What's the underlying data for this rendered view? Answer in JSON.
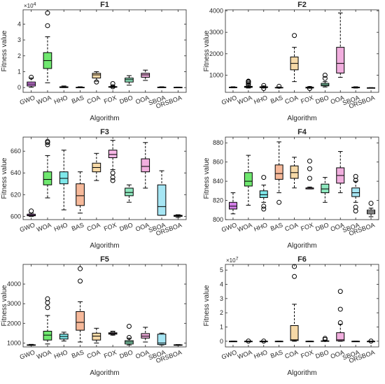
{
  "chart_data": [
    {
      "type": "box",
      "title": "F1",
      "xlabel": "Algorithm",
      "ylabel": "Fitness value",
      "ylim": [
        -0.3,
        4.9
      ],
      "yticks": [
        0,
        1,
        2,
        3,
        4
      ],
      "yticks_labels": [
        "0",
        "1",
        "2",
        "3",
        "4"
      ],
      "y_exponent": "×10",
      "y_exponent_power": "4",
      "categories": [
        "GWO",
        "WOA",
        "HHO",
        "BAS",
        "COA",
        "FOX",
        "DBO",
        "OOA",
        "SBOA",
        "ORSBOA"
      ],
      "boxes": [
        {
          "wlo": 0.02,
          "q1": 0.1,
          "med": 0.22,
          "q3": 0.35,
          "whi": 0.6,
          "out": [
            0.65
          ]
        },
        {
          "wlo": 0.3,
          "q1": 1.2,
          "med": 1.7,
          "q3": 2.2,
          "whi": 3.2,
          "out": [
            3.9,
            4.7
          ]
        },
        {
          "wlo": 0,
          "q1": 0,
          "med": 0.02,
          "q3": 0.05,
          "whi": 0.1,
          "out": []
        },
        {
          "wlo": 0,
          "q1": 0,
          "med": 0.01,
          "q3": 0.02,
          "whi": 0.05,
          "out": []
        },
        {
          "wlo": 0.4,
          "q1": 0.6,
          "med": 0.8,
          "q3": 0.9,
          "whi": 1.0,
          "out": [
            0.35
          ]
        },
        {
          "wlo": 0,
          "q1": 0.02,
          "med": 0.04,
          "q3": 0.06,
          "whi": 0.1,
          "out": [
            0.25,
            0.05
          ]
        },
        {
          "wlo": 0.15,
          "q1": 0.35,
          "med": 0.5,
          "q3": 0.6,
          "whi": 0.75,
          "out": []
        },
        {
          "wlo": 0.45,
          "q1": 0.65,
          "med": 0.8,
          "q3": 0.9,
          "whi": 1.1,
          "out": []
        },
        {
          "wlo": 0,
          "q1": 0.01,
          "med": 0.02,
          "q3": 0.03,
          "whi": 0.05,
          "out": []
        },
        {
          "wlo": 0,
          "q1": 0,
          "med": 0.01,
          "q3": 0.02,
          "whi": 0.03,
          "out": []
        }
      ]
    },
    {
      "type": "box",
      "title": "F2",
      "xlabel": "Algorithm",
      "ylabel": "Fitness value",
      "ylim": [
        200,
        4050
      ],
      "yticks": [
        1000,
        2000,
        3000,
        4000
      ],
      "yticks_labels": [
        "1000",
        "2000",
        "3000",
        "4000"
      ],
      "categories": [
        "GWO",
        "WOA",
        "HHO",
        "BAS",
        "COA",
        "FOX",
        "DBO",
        "OOA",
        "SBOA",
        "ORSBOA"
      ],
      "boxes": [
        {
          "wlo": 410,
          "q1": 420,
          "med": 430,
          "q3": 440,
          "whi": 460,
          "out": []
        },
        {
          "wlo": 400,
          "q1": 430,
          "med": 450,
          "q3": 480,
          "whi": 540,
          "out": [
            560,
            620,
            680,
            700,
            720
          ]
        },
        {
          "wlo": 400,
          "q1": 420,
          "med": 440,
          "q3": 460,
          "whi": 500,
          "out": [
            380,
            520
          ]
        },
        {
          "wlo": 400,
          "q1": 410,
          "med": 420,
          "q3": 430,
          "whi": 450,
          "out": [
            480
          ]
        },
        {
          "wlo": 700,
          "q1": 1250,
          "med": 1550,
          "q3": 1850,
          "whi": 2300,
          "out": [
            2850
          ]
        },
        {
          "wlo": 390,
          "q1": 400,
          "med": 420,
          "q3": 440,
          "whi": 470,
          "out": [
            380
          ]
        },
        {
          "wlo": 450,
          "q1": 500,
          "med": 550,
          "q3": 620,
          "whi": 700,
          "out": [
            850,
            1000
          ]
        },
        {
          "wlo": 900,
          "q1": 1100,
          "med": 1550,
          "q3": 2300,
          "whi": 3900,
          "out": []
        },
        {
          "wlo": 400,
          "q1": 410,
          "med": 420,
          "q3": 440,
          "whi": 460,
          "out": []
        },
        {
          "wlo": 400,
          "q1": 405,
          "med": 410,
          "q3": 415,
          "whi": 420,
          "out": []
        }
      ]
    },
    {
      "type": "box",
      "title": "F3",
      "xlabel": "Algorithm",
      "ylabel": "Fitness value",
      "ylim": [
        597,
        673
      ],
      "yticks": [
        600,
        620,
        640,
        660
      ],
      "yticks_labels": [
        "600",
        "620",
        "640",
        "660"
      ],
      "categories": [
        "GWO",
        "WOA",
        "HHO",
        "BAS",
        "COA",
        "FOX",
        "DBO",
        "OOA",
        "SBOA",
        "ORSBOA"
      ],
      "boxes": [
        {
          "wlo": 600,
          "q1": 600.5,
          "med": 601,
          "q3": 602,
          "whi": 603,
          "out": [
            605
          ]
        },
        {
          "wlo": 617,
          "q1": 629,
          "med": 634,
          "q3": 641,
          "whi": 656,
          "out": [
            666,
            668,
            669
          ]
        },
        {
          "wlo": 606,
          "q1": 630,
          "med": 635,
          "q3": 641,
          "whi": 661,
          "out": []
        },
        {
          "wlo": 603,
          "q1": 610,
          "med": 619,
          "q3": 630,
          "whi": 641,
          "out": []
        },
        {
          "wlo": 633,
          "q1": 641,
          "med": 645,
          "q3": 649,
          "whi": 658,
          "out": []
        },
        {
          "wlo": 643,
          "q1": 654,
          "med": 657,
          "q3": 661,
          "whi": 670,
          "out": [
            633,
            636,
            640
          ]
        },
        {
          "wlo": 613,
          "q1": 619,
          "med": 622,
          "q3": 626,
          "whi": 629,
          "out": []
        },
        {
          "wlo": 626,
          "q1": 641,
          "med": 646,
          "q3": 653,
          "whi": 668,
          "out": []
        },
        {
          "wlo": 601,
          "q1": 601,
          "med": 609,
          "q3": 629,
          "whi": 642,
          "out": []
        },
        {
          "wlo": 599,
          "q1": 600,
          "med": 600.5,
          "q3": 601,
          "whi": 601.5,
          "out": []
        }
      ]
    },
    {
      "type": "box",
      "title": "F4",
      "xlabel": "Algorithm",
      "ylabel": "Fitness value",
      "ylim": [
        800,
        886
      ],
      "yticks": [
        800,
        820,
        840,
        860,
        880
      ],
      "yticks_labels": [
        "800",
        "820",
        "840",
        "860",
        "880"
      ],
      "categories": [
        "GWO",
        "WOA",
        "HHO",
        "BAS",
        "COA",
        "FOX",
        "DBO",
        "OOA",
        "SBOA",
        "ORSBOA"
      ],
      "boxes": [
        {
          "wlo": 806,
          "q1": 811,
          "med": 814,
          "q3": 818,
          "whi": 828,
          "out": []
        },
        {
          "wlo": 815,
          "q1": 835,
          "med": 840,
          "q3": 849,
          "whi": 867,
          "out": []
        },
        {
          "wlo": 818,
          "q1": 823,
          "med": 826,
          "q3": 830,
          "whi": 836,
          "out": [
            811,
            814,
            844
          ]
        },
        {
          "wlo": 828,
          "q1": 842,
          "med": 848,
          "q3": 857,
          "whi": 881,
          "out": [
            818
          ]
        },
        {
          "wlo": 833,
          "q1": 843,
          "med": 849,
          "q3": 856,
          "whi": 865,
          "out": []
        },
        {
          "wlo": 832,
          "q1": 832,
          "med": 833,
          "q3": 833,
          "whi": 834,
          "out": [
            843,
            853,
            861
          ]
        },
        {
          "wlo": 818,
          "q1": 828,
          "med": 832,
          "q3": 837,
          "whi": 844,
          "out": []
        },
        {
          "wlo": 828,
          "q1": 838,
          "med": 846,
          "q3": 854,
          "whi": 871,
          "out": []
        },
        {
          "wlo": 818,
          "q1": 824,
          "med": 828,
          "q3": 833,
          "whi": 840,
          "out": [
            809,
            813,
            841,
            845
          ]
        },
        {
          "wlo": 803,
          "q1": 806,
          "med": 808,
          "q3": 810,
          "whi": 812,
          "out": [
            817
          ]
        }
      ]
    },
    {
      "type": "box",
      "title": "F5",
      "xlabel": "Algorithm",
      "ylabel": "Fitness value",
      "ylim": [
        800,
        5000
      ],
      "yticks": [
        1000,
        2000,
        3000,
        4000
      ],
      "yticks_labels": [
        "1000",
        "2000",
        "3000",
        "4000"
      ],
      "categories": [
        "GWO",
        "WOA",
        "HHO",
        "BAS",
        "COA",
        "FOX",
        "DBO",
        "OOA",
        "SBOA",
        "ORSBOA"
      ],
      "boxes": [
        {
          "wlo": 880,
          "q1": 890,
          "med": 900,
          "q3": 910,
          "whi": 930,
          "out": []
        },
        {
          "wlo": 950,
          "q1": 1150,
          "med": 1400,
          "q3": 1600,
          "whi": 2400,
          "out": [
            2800,
            3050,
            3250
          ]
        },
        {
          "wlo": 1100,
          "q1": 1200,
          "med": 1330,
          "q3": 1450,
          "whi": 1550,
          "out": []
        },
        {
          "wlo": 1050,
          "q1": 1650,
          "med": 2050,
          "q3": 2600,
          "whi": 3100,
          "out": [
            4150,
            4780
          ]
        },
        {
          "wlo": 1000,
          "q1": 1150,
          "med": 1350,
          "q3": 1500,
          "whi": 1750,
          "out": []
        },
        {
          "wlo": 1400,
          "q1": 1450,
          "med": 1480,
          "q3": 1520,
          "whi": 1600,
          "out": [
            1500
          ]
        },
        {
          "wlo": 900,
          "q1": 950,
          "med": 1050,
          "q3": 1120,
          "whi": 1250,
          "out": [
            1280,
            1850
          ]
        },
        {
          "wlo": 1050,
          "q1": 1250,
          "med": 1350,
          "q3": 1480,
          "whi": 1800,
          "out": []
        },
        {
          "wlo": 900,
          "q1": 920,
          "med": 1000,
          "q3": 1450,
          "whi": 1500,
          "out": []
        },
        {
          "wlo": 880,
          "q1": 890,
          "med": 900,
          "q3": 910,
          "whi": 920,
          "out": []
        }
      ]
    },
    {
      "type": "box",
      "title": "F6",
      "xlabel": "Algorithm",
      "ylabel": "Fitness value",
      "ylim": [
        -0.4,
        5.4
      ],
      "yticks": [
        0,
        1,
        2,
        3,
        4,
        5
      ],
      "yticks_labels": [
        "0",
        "1",
        "2",
        "3",
        "4",
        "5"
      ],
      "y_exponent": "×10",
      "y_exponent_power": "7",
      "categories": [
        "GWO",
        "WOA",
        "HHO",
        "BAS",
        "COA",
        "FOX",
        "DBO",
        "OOA",
        "SBOA",
        "ORSBOA"
      ],
      "boxes": [
        {
          "wlo": 0,
          "q1": 0,
          "med": 0,
          "q3": 0,
          "whi": 0,
          "out": []
        },
        {
          "wlo": 0,
          "q1": 0,
          "med": 0,
          "q3": 0,
          "whi": 0,
          "out": [
            0.01
          ]
        },
        {
          "wlo": 0,
          "q1": 0,
          "med": 0,
          "q3": 0,
          "whi": 0,
          "out": [
            0.01
          ]
        },
        {
          "wlo": 0,
          "q1": 0,
          "med": 0,
          "q3": 0,
          "whi": 0,
          "out": []
        },
        {
          "wlo": 0,
          "q1": 0.05,
          "med": 0.1,
          "q3": 1.1,
          "whi": 2.6,
          "out": [
            4.55,
            5.25
          ]
        },
        {
          "wlo": 0,
          "q1": 0,
          "med": 0,
          "q3": 0,
          "whi": 0,
          "out": []
        },
        {
          "wlo": 0,
          "q1": 0,
          "med": 0.01,
          "q3": 0.03,
          "whi": 0.08,
          "out": [
            0.12,
            0.2
          ]
        },
        {
          "wlo": 0,
          "q1": 0.03,
          "med": 0.1,
          "q3": 0.6,
          "whi": 1.2,
          "out": [
            1.3,
            2.25,
            3.5
          ]
        },
        {
          "wlo": 0,
          "q1": 0,
          "med": 0,
          "q3": 0,
          "whi": 0,
          "out": []
        },
        {
          "wlo": 0,
          "q1": 0,
          "med": 0,
          "q3": 0,
          "whi": 0,
          "out": [
            0.01
          ]
        }
      ]
    }
  ],
  "colors": [
    "#d47fe8",
    "#6fe86f",
    "#7fe8ea",
    "#f7b99a",
    "#f6d9a7",
    "#f7b6e6",
    "#8fe8bf",
    "#f1aede",
    "#a6e6f4",
    "#bdbdbd"
  ]
}
